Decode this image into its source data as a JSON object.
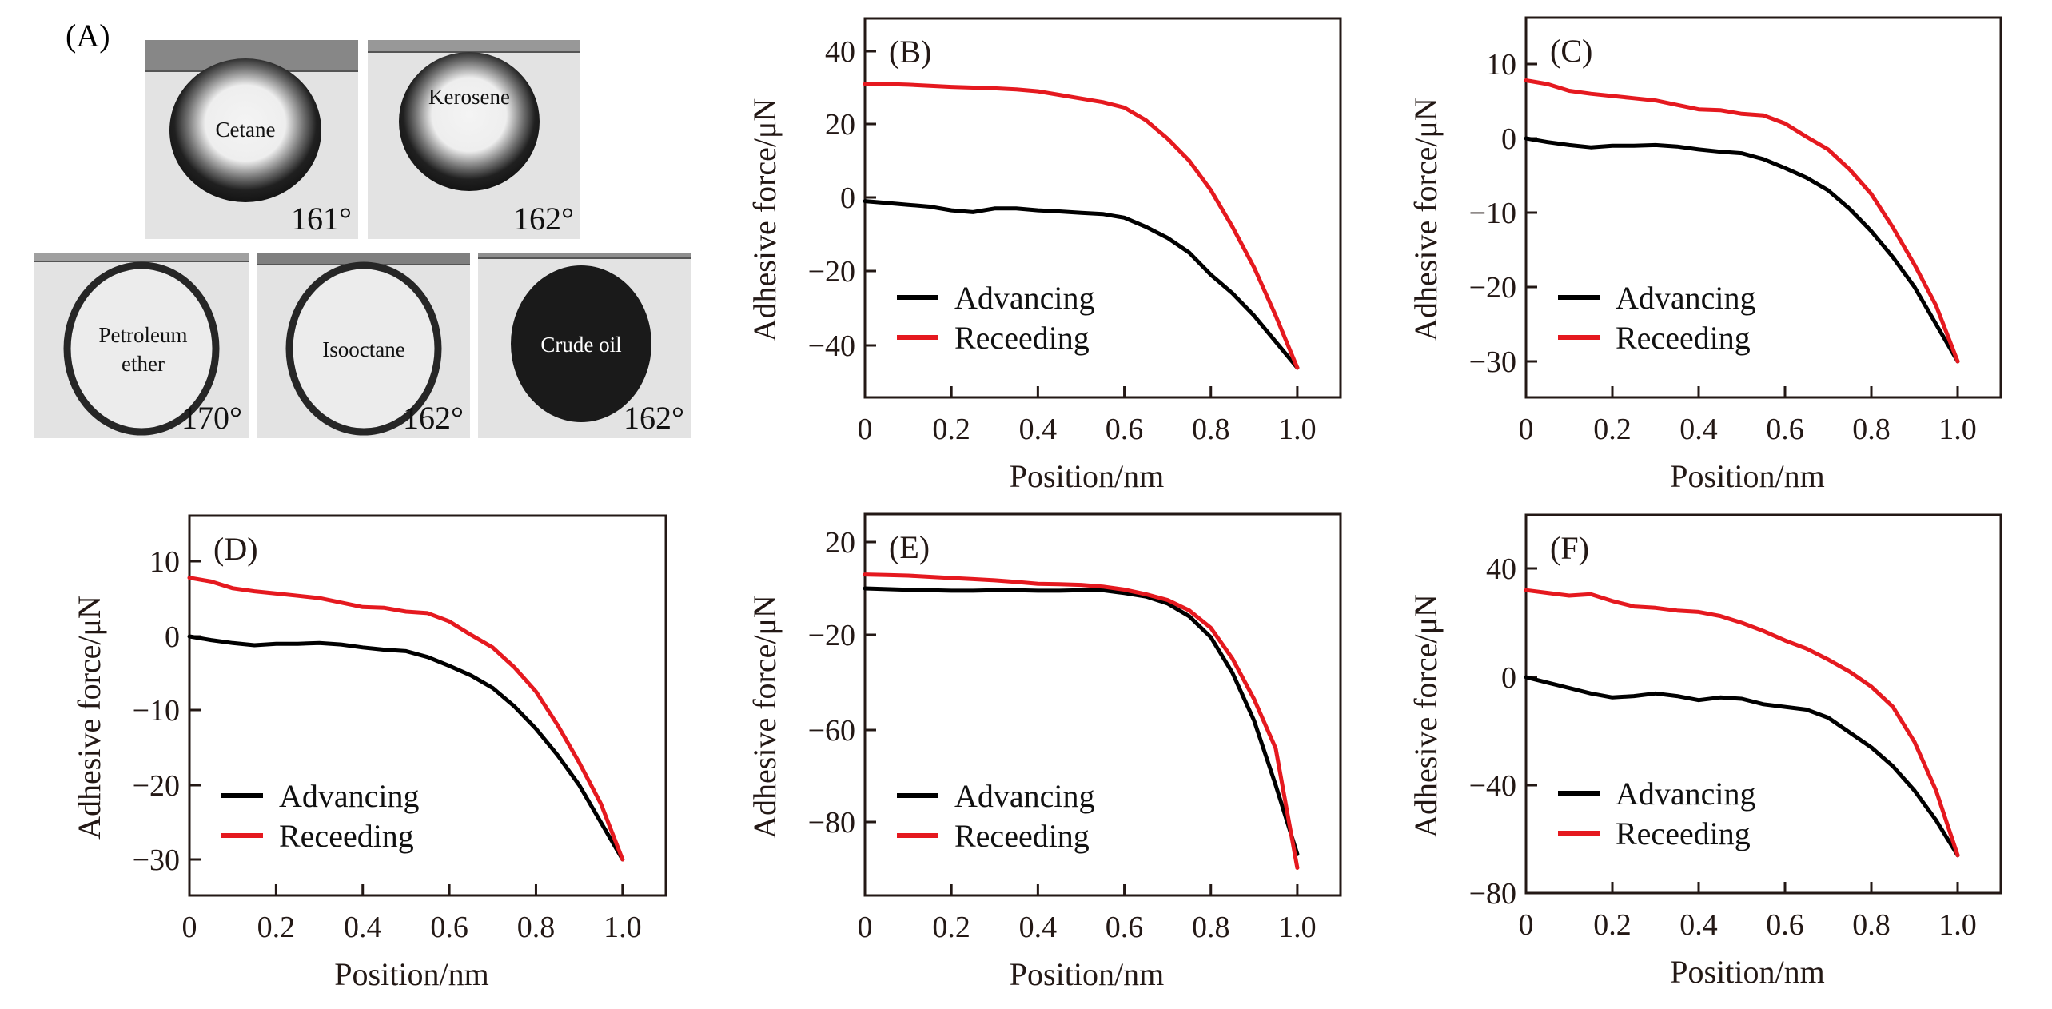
{
  "figure": {
    "panel_a": {
      "label": "(A)",
      "droplets": [
        {
          "name": "Cetane",
          "angle": "161°",
          "style": "hollow"
        },
        {
          "name": "Kerosene",
          "angle": "162°",
          "style": "hollow"
        },
        {
          "name": "Petroleum ether",
          "lines": [
            "Petroleum",
            "ether"
          ],
          "angle": "170°",
          "style": "ring"
        },
        {
          "name": "Isooctane",
          "angle": "162°",
          "style": "ring"
        },
        {
          "name": "Crude oil",
          "angle": "162°",
          "style": "filled"
        }
      ]
    },
    "colors": {
      "advancing": "#000000",
      "receding": "#e5191f",
      "axis": "#231815"
    }
  },
  "chart_data": [
    {
      "panel": "(B)",
      "type": "line",
      "title": "",
      "xlabel": "Position/nm",
      "ylabel": "Adhesive force/μN",
      "xlim": [
        0,
        1.1
      ],
      "ylim": [
        -50,
        50
      ],
      "xticks": [
        0,
        0.2,
        0.4,
        0.6,
        0.8,
        1.0
      ],
      "xtick_labels": [
        "0",
        "0.2",
        "0.4",
        "0.6",
        "0.8",
        "1.0"
      ],
      "yticks": [
        40,
        20,
        0,
        -20,
        -40
      ],
      "ytick_labels": [
        "40",
        "20",
        "0",
        "−20",
        "−40"
      ],
      "legend": {
        "position": "bottom-left",
        "entries": [
          "Advancing",
          "Receeding"
        ]
      },
      "grid": false,
      "x": [
        0,
        0.05,
        0.1,
        0.15,
        0.2,
        0.25,
        0.3,
        0.35,
        0.4,
        0.45,
        0.5,
        0.55,
        0.6,
        0.65,
        0.7,
        0.75,
        0.8,
        0.85,
        0.9,
        0.95,
        1.0
      ],
      "series": [
        {
          "name": "Advancing",
          "values": [
            -1,
            -1.5,
            -2,
            -2.5,
            -3.5,
            -4,
            -3,
            -3,
            -3.5,
            -3.8,
            -4.2,
            -4.5,
            -5.5,
            -8,
            -11,
            -15,
            -21,
            -26,
            -32,
            -39,
            -46
          ]
        },
        {
          "name": "Receeding",
          "values": [
            31,
            31,
            30.8,
            30.5,
            30.2,
            30,
            29.8,
            29.5,
            29,
            28,
            27,
            26,
            24.5,
            21,
            16,
            10,
            2,
            -8,
            -19,
            -32,
            -46
          ]
        }
      ]
    },
    {
      "panel": "(C)",
      "type": "line",
      "title": "",
      "xlabel": "Position/nm",
      "ylabel": "Adhesive force/μN",
      "xlim": [
        0,
        1.1
      ],
      "ylim": [
        -35,
        16
      ],
      "xticks": [
        0,
        0.2,
        0.4,
        0.6,
        0.8,
        1.0
      ],
      "xtick_labels": [
        "0",
        "0.2",
        "0.4",
        "0.6",
        "0.8",
        "1.0"
      ],
      "yticks": [
        10,
        0,
        -10,
        -20,
        -30
      ],
      "ytick_labels": [
        "10",
        "0",
        "−10",
        "−20",
        "−30"
      ],
      "legend": {
        "position": "bottom-left",
        "entries": [
          "Advancing",
          "Receeding"
        ]
      },
      "grid": false,
      "x": [
        0,
        0.05,
        0.1,
        0.15,
        0.2,
        0.25,
        0.3,
        0.35,
        0.4,
        0.45,
        0.5,
        0.55,
        0.6,
        0.65,
        0.7,
        0.75,
        0.8,
        0.85,
        0.9,
        0.95,
        1.0
      ],
      "series": [
        {
          "name": "Advancing",
          "values": [
            0,
            -0.5,
            -0.9,
            -1.2,
            -1,
            -1,
            -0.9,
            -1.1,
            -1.5,
            -1.8,
            -2,
            -2.8,
            -4,
            -5.3,
            -7,
            -9.5,
            -12.5,
            -16,
            -20,
            -25,
            -30
          ]
        },
        {
          "name": "Receeding",
          "values": [
            7.8,
            7.3,
            6.4,
            6,
            5.7,
            5.4,
            5.1,
            4.5,
            3.9,
            3.8,
            3.3,
            3.1,
            2,
            0.2,
            -1.5,
            -4.2,
            -7.5,
            -12,
            -17,
            -22.5,
            -30
          ]
        }
      ]
    },
    {
      "panel": "(D)",
      "type": "line",
      "title": "",
      "xlabel": "Position/nm",
      "ylabel": "Adhesive force/μN",
      "xlim": [
        0,
        1.1
      ],
      "ylim": [
        -35,
        16
      ],
      "xticks": [
        0,
        0.2,
        0.4,
        0.6,
        0.8,
        1.0
      ],
      "xtick_labels": [
        "0",
        "0.2",
        "0.4",
        "0.6",
        "0.8",
        "1.0"
      ],
      "yticks": [
        10,
        0,
        -10,
        -20,
        -30
      ],
      "ytick_labels": [
        "10",
        "0",
        "−10",
        "−20",
        "−30"
      ],
      "legend": {
        "position": "bottom-left",
        "entries": [
          "Advancing",
          "Receeding"
        ]
      },
      "grid": false,
      "x": [
        0,
        0.05,
        0.1,
        0.15,
        0.2,
        0.25,
        0.3,
        0.35,
        0.4,
        0.45,
        0.5,
        0.55,
        0.6,
        0.65,
        0.7,
        0.75,
        0.8,
        0.85,
        0.9,
        0.95,
        1.0
      ],
      "series": [
        {
          "name": "Advancing",
          "values": [
            0,
            -0.5,
            -0.9,
            -1.2,
            -1,
            -1,
            -0.9,
            -1.1,
            -1.5,
            -1.8,
            -2,
            -2.8,
            -4,
            -5.3,
            -7,
            -9.5,
            -12.5,
            -16,
            -20,
            -25,
            -30
          ]
        },
        {
          "name": "Receeding",
          "values": [
            7.8,
            7.3,
            6.4,
            6,
            5.7,
            5.4,
            5.1,
            4.5,
            3.9,
            3.8,
            3.3,
            3.1,
            2,
            0.2,
            -1.5,
            -4.2,
            -7.5,
            -12,
            -17,
            -22.5,
            -30
          ]
        }
      ]
    },
    {
      "panel": "(E)",
      "type": "line",
      "title": "",
      "xlabel": "Position/nm",
      "ylabel": "Adhesive force/μN",
      "xlim": [
        0,
        1.1
      ],
      "ylim": [
        -103,
        32
      ],
      "xticks": [
        0,
        0.2,
        0.4,
        0.6,
        0.8,
        1.0
      ],
      "xtick_labels": [
        "0",
        "0.2",
        "0.4",
        "0.6",
        "0.8",
        "1.0"
      ],
      "yticks": [
        20,
        -20,
        -60,
        -80
      ],
      "ytick_labels": [
        "20",
        "−20",
        "−60",
        "−80"
      ],
      "ytick_note": "printed tick labels are evenly spaced",
      "legend": {
        "position": "bottom-left",
        "entries": [
          "Advancing",
          "Receeding"
        ]
      },
      "grid": false,
      "x": [
        0,
        0.05,
        0.1,
        0.15,
        0.2,
        0.25,
        0.3,
        0.35,
        0.4,
        0.45,
        0.5,
        0.55,
        0.6,
        0.65,
        0.7,
        0.75,
        0.8,
        0.85,
        0.9,
        0.95,
        1.0
      ],
      "series": [
        {
          "name": "Advancing",
          "values": [
            0,
            -0.3,
            -0.6,
            -0.8,
            -1,
            -1,
            -0.8,
            -0.8,
            -1,
            -1,
            -0.8,
            -0.8,
            -2,
            -3.5,
            -6.5,
            -12,
            -21,
            -36,
            -56,
            -72,
            -87
          ]
        },
        {
          "name": "Receeding",
          "values": [
            6,
            5.8,
            5.5,
            5,
            4.5,
            4,
            3.5,
            2.8,
            2,
            1.8,
            1.5,
            0.8,
            -0.5,
            -2.5,
            -5,
            -9.5,
            -17,
            -30,
            -47,
            -64,
            -90
          ]
        }
      ]
    },
    {
      "panel": "(F)",
      "type": "line",
      "title": "",
      "xlabel": "Position/nm",
      "ylabel": "Adhesive force/μN",
      "xlim": [
        0,
        1.1
      ],
      "ylim": [
        -80,
        60
      ],
      "xticks": [
        0,
        0.2,
        0.4,
        0.6,
        0.8,
        1.0
      ],
      "xtick_labels": [
        "0",
        "0.2",
        "0.4",
        "0.6",
        "0.8",
        "1.0"
      ],
      "yticks": [
        40,
        0,
        -40,
        -80
      ],
      "ytick_labels": [
        "40",
        "0",
        "−40",
        "−80"
      ],
      "legend": {
        "position": "bottom-left",
        "entries": [
          "Advancing",
          "Receeding"
        ]
      },
      "grid": false,
      "x": [
        0,
        0.05,
        0.1,
        0.15,
        0.2,
        0.25,
        0.3,
        0.35,
        0.4,
        0.45,
        0.5,
        0.55,
        0.6,
        0.65,
        0.7,
        0.75,
        0.8,
        0.85,
        0.9,
        0.95,
        1.0
      ],
      "series": [
        {
          "name": "Advancing",
          "values": [
            0,
            -2,
            -4,
            -6,
            -7.5,
            -7,
            -6,
            -7,
            -8.5,
            -7.5,
            -8,
            -10,
            -11,
            -12,
            -15,
            -20.5,
            -26,
            -33,
            -42,
            -53,
            -66
          ]
        },
        {
          "name": "Receeding",
          "values": [
            32,
            31,
            30,
            30.5,
            28,
            26,
            25.5,
            24.5,
            24,
            22.5,
            20,
            17,
            13.5,
            10.5,
            6.5,
            2,
            -3.5,
            -11,
            -24,
            -42,
            -66
          ]
        }
      ]
    }
  ]
}
